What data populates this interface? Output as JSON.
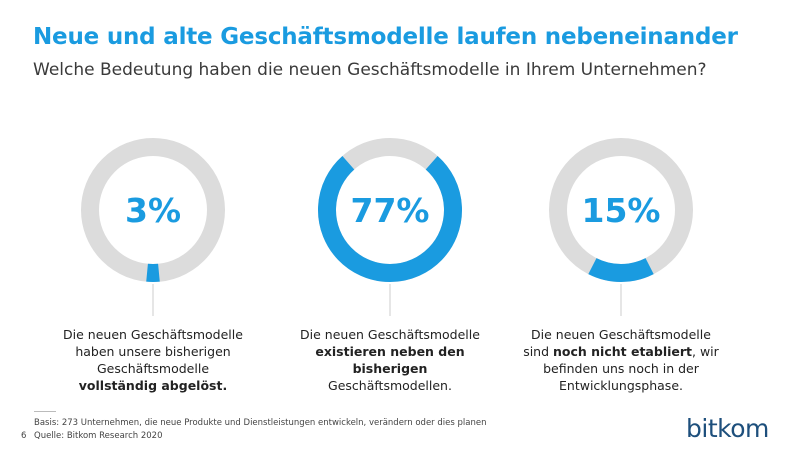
{
  "title": "Neue und alte Geschäftsmodelle laufen nebeneinander",
  "subtitle": "Welche Bedeutung haben die neuen Geschäftsmodelle in Ihrem Unternehmen?",
  "chart_data": [
    {
      "type": "donut",
      "values": [
        3
      ],
      "value_labels": [
        "3%"
      ],
      "color": "#1a9be0",
      "track_color": "#dcdcdc",
      "description": [
        [
          {
            "text": "Die neuen Geschäftsmodelle"
          }
        ],
        [
          {
            "text": "haben unsere bisherigen"
          }
        ],
        [
          {
            "text": "Geschäftsmodelle"
          }
        ],
        [
          {
            "text": "vollständig abgelöst.",
            "bold": true
          }
        ]
      ]
    },
    {
      "type": "donut",
      "values": [
        77
      ],
      "value_labels": [
        "77%"
      ],
      "color": "#1a9be0",
      "track_color": "#dcdcdc",
      "description": [
        [
          {
            "text": "Die neuen Geschäftsmodelle"
          }
        ],
        [
          {
            "text": "existieren neben den",
            "bold": true
          }
        ],
        [
          {
            "text": "bisherigen",
            "bold": true
          }
        ],
        [
          {
            "text": "Geschäftsmodellen."
          }
        ]
      ]
    },
    {
      "type": "donut",
      "values": [
        15
      ],
      "value_labels": [
        "15%"
      ],
      "color": "#1a9be0",
      "track_color": "#dcdcdc",
      "description": [
        [
          {
            "text": "Die neuen Geschäftsmodelle"
          }
        ],
        [
          {
            "text": "sind "
          },
          {
            "text": "noch nicht etabliert",
            "bold": true
          },
          {
            "text": ", wir"
          }
        ],
        [
          {
            "text": "befinden uns noch in der"
          }
        ],
        [
          {
            "text": "Entwicklungsphase."
          }
        ]
      ]
    }
  ],
  "footer": {
    "basis": "Basis: 273 Unternehmen, die neue Produkte und Dienstleistungen entwickeln, verändern oder dies planen",
    "source": "Quelle: Bitkom Research 2020",
    "page": 6,
    "logo": "bitkom"
  }
}
